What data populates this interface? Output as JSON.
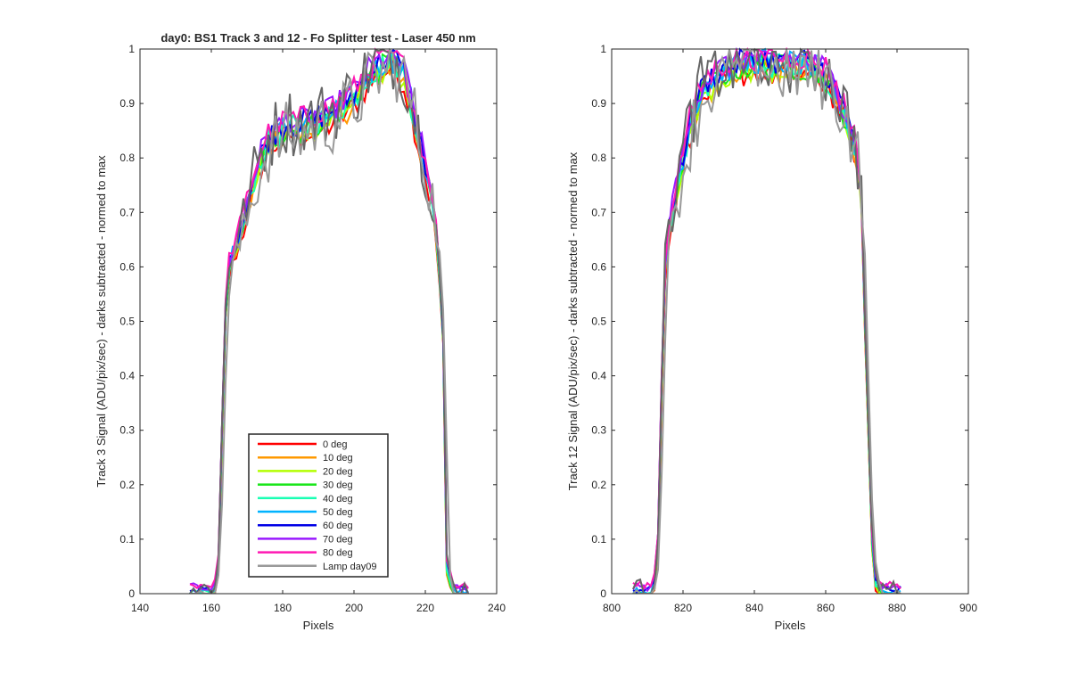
{
  "chart_data": [
    {
      "type": "line",
      "title": "day0: BS1  Track 3 and 12 - Fo Splitter test - Laser 450 nm",
      "xlabel": "Pixels",
      "ylabel": "Track 3 Signal (ADU/pix/sec) - darks subtracted - normed to max",
      "xlim": [
        140,
        240
      ],
      "ylim": [
        0,
        1
      ],
      "xticks": [
        "140",
        "160",
        "180",
        "200",
        "220",
        "240"
      ],
      "yticks": [
        "0",
        "0.1",
        "0.2",
        "0.3",
        "0.4",
        "0.5",
        "0.6",
        "0.7",
        "0.8",
        "0.9",
        "1"
      ],
      "grid": false,
      "legend_position": "lower-center",
      "profile": {
        "x": [
          154,
          156,
          158,
          160,
          161,
          162,
          163,
          164,
          165,
          166,
          167,
          168,
          169,
          170,
          172,
          174,
          176,
          178,
          180,
          182,
          184,
          186,
          188,
          190,
          192,
          194,
          196,
          198,
          200,
          202,
          204,
          206,
          208,
          210,
          212,
          214,
          216,
          218,
          220,
          222,
          223,
          224,
          225,
          226,
          228,
          230,
          232
        ],
        "y": [
          0,
          0,
          0,
          0,
          0.01,
          0.05,
          0.3,
          0.52,
          0.6,
          0.62,
          0.64,
          0.66,
          0.68,
          0.71,
          0.76,
          0.8,
          0.83,
          0.84,
          0.85,
          0.86,
          0.85,
          0.86,
          0.86,
          0.87,
          0.87,
          0.88,
          0.89,
          0.9,
          0.91,
          0.93,
          0.95,
          0.96,
          0.97,
          0.98,
          0.97,
          0.95,
          0.9,
          0.84,
          0.78,
          0.72,
          0.66,
          0.58,
          0.47,
          0.05,
          0,
          0,
          0
        ]
      }
    },
    {
      "type": "line",
      "xlabel": "Pixels",
      "ylabel": "Track 12 Signal (ADU/pix/sec) - darks subtracted - normed to max",
      "xlim": [
        800,
        900
      ],
      "ylim": [
        0,
        1
      ],
      "xticks": [
        "800",
        "820",
        "840",
        "860",
        "880",
        "900"
      ],
      "yticks": [
        "0",
        "0.1",
        "0.2",
        "0.3",
        "0.4",
        "0.5",
        "0.6",
        "0.7",
        "0.8",
        "0.9",
        "1"
      ],
      "grid": false,
      "profile": {
        "x": [
          806,
          808,
          810,
          811,
          812,
          813,
          814,
          815,
          816,
          818,
          820,
          822,
          824,
          826,
          828,
          830,
          832,
          834,
          836,
          838,
          840,
          842,
          844,
          846,
          848,
          850,
          852,
          854,
          856,
          858,
          860,
          862,
          864,
          866,
          868,
          869,
          870,
          871,
          872,
          873,
          874,
          876,
          878,
          880,
          881
        ],
        "y": [
          0,
          0,
          0,
          0,
          0.02,
          0.1,
          0.38,
          0.6,
          0.66,
          0.74,
          0.8,
          0.86,
          0.9,
          0.93,
          0.94,
          0.95,
          0.96,
          0.96,
          0.97,
          0.97,
          0.97,
          0.98,
          0.97,
          0.97,
          0.97,
          0.97,
          0.97,
          0.97,
          0.96,
          0.96,
          0.95,
          0.93,
          0.9,
          0.87,
          0.83,
          0.79,
          0.72,
          0.5,
          0.3,
          0.1,
          0.02,
          0,
          0,
          0,
          0
        ]
      }
    }
  ],
  "legend": [
    {
      "label": "0 deg",
      "color": "#ff0000"
    },
    {
      "label": "10 deg",
      "color": "#ff9900"
    },
    {
      "label": "20 deg",
      "color": "#b3ff00"
    },
    {
      "label": "30 deg",
      "color": "#19e619"
    },
    {
      "label": "40 deg",
      "color": "#19ffb3"
    },
    {
      "label": "50 deg",
      "color": "#00b3ff"
    },
    {
      "label": "60 deg",
      "color": "#0000e6"
    },
    {
      "label": "70 deg",
      "color": "#9919ff"
    },
    {
      "label": "80 deg",
      "color": "#ff19b3"
    },
    {
      "label": "Lamp day09",
      "color": "#999999"
    }
  ],
  "lamp_dark_color": "#666666"
}
